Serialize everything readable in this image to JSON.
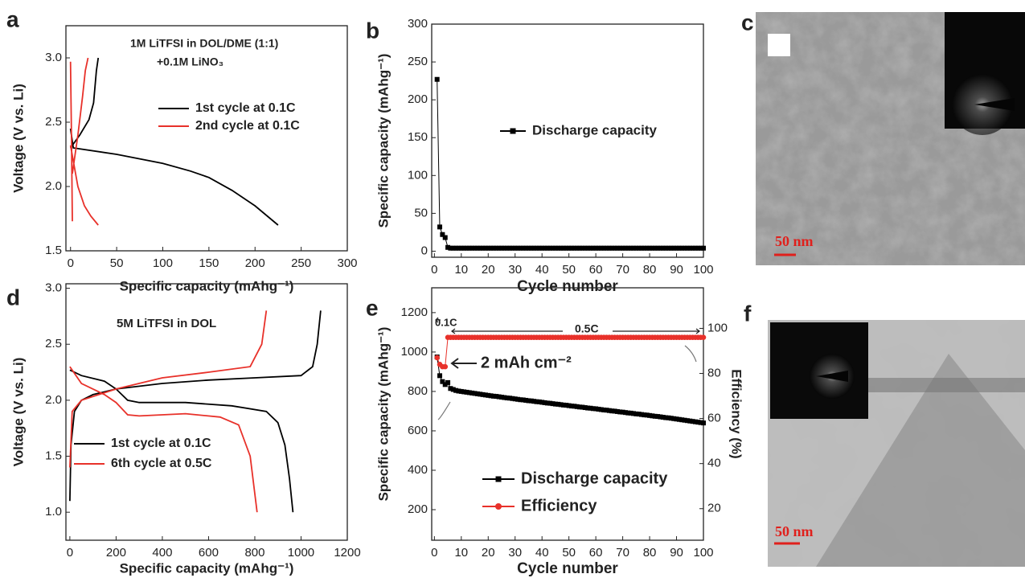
{
  "chart_data": [
    {
      "type": "line",
      "panel": "a",
      "xlabel": "Specific capacity (mAhg⁻¹)",
      "ylabel": "Voltage (V vs. Li)",
      "annotations": [
        "1M LiTFSI in DOL/DME (1:1)",
        "+0.1M LiNO₃"
      ],
      "xlim": [
        -5,
        300
      ],
      "ylim": [
        1.5,
        3.25
      ],
      "xticks": [
        0,
        50,
        100,
        150,
        200,
        250,
        300
      ],
      "yticks": [
        1.5,
        {
          "value": 2,
          "label": "2.0"
        },
        2.5,
        {
          "value": 3,
          "label": "3.0"
        }
      ],
      "series": [
        {
          "name": "1st cycle at 0.1C",
          "color": "#000000",
          "x": [
            0,
            3,
            50,
            100,
            130,
            150,
            175,
            200,
            225,
            null,
            0,
            10,
            20,
            25,
            28,
            30
          ],
          "values": [
            2.45,
            2.3,
            2.25,
            2.18,
            2.12,
            2.07,
            1.97,
            1.85,
            1.7,
            null,
            2.3,
            2.4,
            2.52,
            2.65,
            2.9,
            3.0
          ]
        },
        {
          "name": "2nd cycle at 0.1C",
          "color": "#e8312a",
          "x": [
            0,
            1,
            2,
            null,
            0,
            8,
            15,
            22,
            30,
            null,
            2,
            8,
            13,
            16,
            19
          ],
          "values": [
            2.97,
            2.4,
            1.73,
            null,
            2.32,
            2.0,
            1.85,
            1.77,
            1.7,
            null,
            2.1,
            2.4,
            2.7,
            2.9,
            3.0
          ]
        }
      ]
    },
    {
      "type": "line",
      "panel": "b",
      "xlabel": "Cycle number",
      "ylabel": "Specific capacity (mAhg⁻¹)",
      "xlim": [
        -1,
        100
      ],
      "ylim": [
        -8,
        300
      ],
      "xticks": [
        0,
        10,
        20,
        30,
        40,
        50,
        60,
        70,
        80,
        90,
        100
      ],
      "yticks": [
        0,
        50,
        100,
        150,
        200,
        250,
        300
      ],
      "x": [
        1,
        2,
        3,
        4,
        5,
        6,
        7,
        8,
        9,
        10,
        11,
        12,
        13,
        14,
        15,
        16,
        17,
        18,
        19,
        20,
        21,
        22,
        23,
        24,
        25,
        26,
        27,
        28,
        29,
        30,
        31,
        32,
        33,
        34,
        35,
        36,
        37,
        38,
        39,
        40,
        41,
        42,
        43,
        44,
        45,
        46,
        47,
        48,
        49,
        50,
        51,
        52,
        53,
        54,
        55,
        56,
        57,
        58,
        59,
        60,
        61,
        62,
        63,
        64,
        65,
        66,
        67,
        68,
        69,
        70,
        71,
        72,
        73,
        74,
        75,
        76,
        77,
        78,
        79,
        80,
        81,
        82,
        83,
        84,
        85,
        86,
        87,
        88,
        89,
        90,
        91,
        92,
        93,
        94,
        95,
        96,
        97,
        98,
        99,
        100
      ],
      "series": [
        {
          "name": "Discharge capacity",
          "color": "#000000",
          "marker": "square",
          "values": [
            227,
            32,
            22,
            18,
            5,
            4,
            4,
            4,
            4,
            4,
            4,
            4,
            4,
            4,
            4,
            4,
            4,
            4,
            4,
            4,
            4,
            4,
            4,
            4,
            4,
            4,
            4,
            4,
            4,
            4,
            4,
            4,
            4,
            4,
            4,
            4,
            4,
            4,
            4,
            4,
            4,
            4,
            4,
            4,
            4,
            4,
            4,
            4,
            4,
            4,
            4,
            4,
            4,
            4,
            4,
            4,
            4,
            4,
            4,
            4,
            4,
            4,
            4,
            4,
            4,
            4,
            4,
            4,
            4,
            4,
            4,
            4,
            4,
            4,
            4,
            4,
            4,
            4,
            4,
            4,
            4,
            4,
            4,
            4,
            4,
            4,
            4,
            4,
            4,
            4,
            4,
            4,
            4,
            4,
            4,
            4,
            4,
            4,
            4,
            4
          ]
        }
      ]
    },
    {
      "type": "line",
      "panel": "d",
      "xlabel": "Specific capacity (mAhg⁻¹)",
      "ylabel": "Voltage (V vs. Li)",
      "annotations": [
        "5M LiTFSI in DOL"
      ],
      "xlim": [
        -17,
        1200
      ],
      "ylim": [
        0.75,
        3.04
      ],
      "xticks": [
        0,
        200,
        400,
        600,
        800,
        1000,
        1200
      ],
      "yticks": [
        {
          "value": 1,
          "label": "1.0"
        },
        1.5,
        {
          "value": 2,
          "label": "2.0"
        },
        2.5,
        {
          "value": 3,
          "label": "3.0"
        }
      ],
      "series": [
        {
          "name": "1st cycle at 0.1C",
          "color": "#000000",
          "x": [
            0,
            50,
            150,
            200,
            250,
            300,
            500,
            700,
            850,
            900,
            930,
            950,
            965,
            null,
            0,
            5,
            20,
            50,
            100,
            200,
            400,
            600,
            800,
            1000,
            1050,
            1070,
            1085
          ],
          "values": [
            2.27,
            2.22,
            2.17,
            2.1,
            2.0,
            1.98,
            1.98,
            1.95,
            1.9,
            1.8,
            1.6,
            1.3,
            1.0,
            null,
            1.1,
            1.6,
            1.9,
            2.0,
            2.05,
            2.1,
            2.15,
            2.18,
            2.2,
            2.22,
            2.3,
            2.5,
            2.8
          ]
        },
        {
          "name": "6th cycle at 0.5C",
          "color": "#e8312a",
          "x": [
            0,
            50,
            150,
            200,
            250,
            300,
            500,
            650,
            730,
            780,
            810,
            null,
            0,
            10,
            50,
            200,
            400,
            600,
            780,
            830,
            850
          ],
          "values": [
            2.3,
            2.15,
            2.05,
            1.98,
            1.87,
            1.86,
            1.88,
            1.85,
            1.78,
            1.5,
            1.0,
            null,
            1.4,
            1.9,
            2.0,
            2.1,
            2.2,
            2.25,
            2.3,
            2.5,
            2.8
          ]
        }
      ]
    },
    {
      "type": "line",
      "panel": "e",
      "xlabel": "Cycle number",
      "ylabel": "Specific capacity (mAhg⁻¹)",
      "y2label": "Efficiency (%)",
      "annotations": [
        "0.1C",
        "0.5C",
        "2 mAh cm⁻²"
      ],
      "xlim": [
        -1,
        100
      ],
      "ylim": [
        45,
        1326
      ],
      "y2lim": [
        6,
        118
      ],
      "xticks": [
        0,
        10,
        20,
        30,
        40,
        50,
        60,
        70,
        80,
        90,
        100
      ],
      "yticks": [
        200,
        400,
        600,
        800,
        1000,
        1200
      ],
      "y2ticks": [
        20,
        40,
        60,
        80,
        100
      ],
      "x": [
        1,
        2,
        3,
        4,
        5,
        6,
        7,
        8,
        9,
        10,
        11,
        12,
        13,
        14,
        15,
        16,
        17,
        18,
        19,
        20,
        21,
        22,
        23,
        24,
        25,
        26,
        27,
        28,
        29,
        30,
        31,
        32,
        33,
        34,
        35,
        36,
        37,
        38,
        39,
        40,
        41,
        42,
        43,
        44,
        45,
        46,
        47,
        48,
        49,
        50,
        51,
        52,
        53,
        54,
        55,
        56,
        57,
        58,
        59,
        60,
        61,
        62,
        63,
        64,
        65,
        66,
        67,
        68,
        69,
        70,
        71,
        72,
        73,
        74,
        75,
        76,
        77,
        78,
        79,
        80,
        81,
        82,
        83,
        84,
        85,
        86,
        87,
        88,
        89,
        90,
        91,
        92,
        93,
        94,
        95,
        96,
        97,
        98,
        99,
        100
      ],
      "series": [
        {
          "name": "Discharge capacity",
          "color": "#000000",
          "marker": "square",
          "values": [
            975,
            880,
            850,
            835,
            845,
            815,
            810,
            805,
            802,
            800,
            798,
            796,
            794,
            792,
            790,
            788,
            786,
            784,
            782,
            780,
            778,
            776,
            775,
            773,
            771,
            769,
            767,
            766,
            764,
            762,
            760,
            758,
            757,
            755,
            753,
            752,
            750,
            748,
            747,
            745,
            743,
            741,
            740,
            738,
            736,
            735,
            733,
            731,
            730,
            728,
            726,
            725,
            723,
            721,
            720,
            718,
            716,
            715,
            713,
            712,
            710,
            708,
            706,
            705,
            703,
            701,
            700,
            698,
            696,
            695,
            693,
            691,
            690,
            688,
            686,
            685,
            683,
            681,
            680,
            678,
            676,
            674,
            673,
            671,
            669,
            667,
            666,
            664,
            662,
            660,
            658,
            656,
            654,
            652,
            650,
            648,
            646,
            644,
            642,
            640
          ]
        },
        {
          "name": "Efficiency",
          "color": "#e8312a",
          "marker": "circle",
          "axis": "y2",
          "values": [
            87,
            84,
            83,
            83,
            96,
            96,
            96,
            96,
            96,
            96,
            96,
            96,
            96,
            96,
            96,
            96,
            96,
            96,
            96,
            96,
            96,
            96,
            96,
            96,
            96,
            96,
            96,
            96,
            96,
            96,
            96,
            96,
            96,
            96,
            96,
            96,
            96,
            96,
            96,
            96,
            96,
            96,
            96,
            96,
            96,
            96,
            96,
            96,
            96,
            96,
            96,
            96,
            96,
            96,
            96,
            96,
            96,
            96,
            96,
            96,
            96,
            96,
            96,
            96,
            96,
            96,
            96,
            96,
            96,
            96,
            96,
            96,
            96,
            96,
            96,
            96,
            96,
            96,
            96,
            96,
            96,
            96,
            96,
            96,
            96,
            96,
            96,
            96,
            96,
            96,
            96,
            96,
            96,
            96,
            96,
            96,
            96,
            96,
            96,
            96
          ]
        }
      ]
    }
  ],
  "images": [
    {
      "panel": "c",
      "scale_bar": "50 nm"
    },
    {
      "panel": "f",
      "scale_bar": "50 nm"
    }
  ]
}
